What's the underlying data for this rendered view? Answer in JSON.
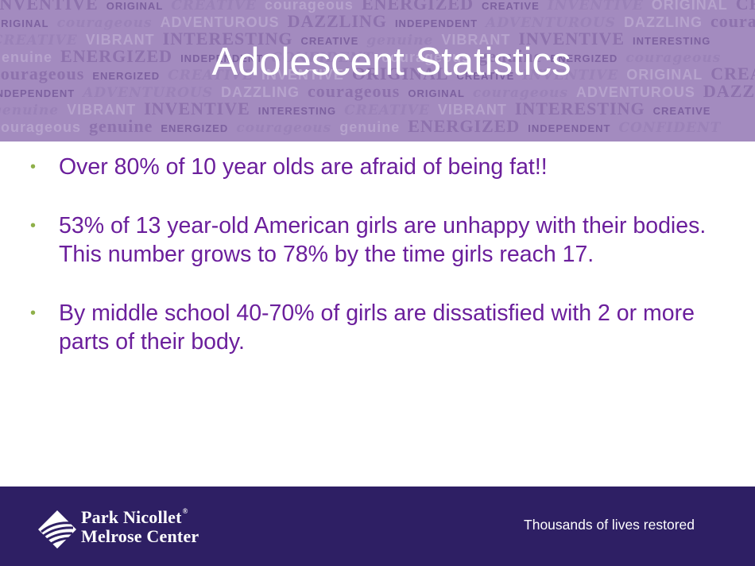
{
  "slide": {
    "title": "Adolescent Statistics",
    "bullets": [
      "Over 80% of 10 year olds are afraid of being fat!!",
      "53% of 13 year-old American girls are unhappy with their bodies. This number grows to 78% by the time girls reach 17.",
      "By middle school 40-70% of girls are dissatisfied with 2 or more parts of their body."
    ],
    "bullet_glyph": "•"
  },
  "header": {
    "background_words": [
      [
        "INVENTIVE",
        "ORIGINAL",
        "CREATIVE",
        "courageous",
        "ENERGIZED",
        "CREATIVE",
        "INVENTIVE",
        "ORIGINAL",
        "CREATIVE"
      ],
      [
        "ADVENTUROUS",
        "DAZZLING",
        "courageous",
        "ORIGINAL",
        "courageous",
        "ADVENTUROUS",
        "DAZZLING",
        "INDEPENDENT"
      ],
      [
        "INTERESTING",
        "CREATIVE",
        "genuine",
        "VIBRANT",
        "INVENTIVE",
        "INTERESTING",
        "CREATIVE",
        "VIBRANT"
      ],
      [
        "courageous",
        "genuine",
        "ENERGIZED",
        "INDEPENDENT",
        "CONFIDENT",
        "courageous",
        "genuine",
        "ENERGIZED"
      ]
    ]
  },
  "footer": {
    "logo_line1": "Park Nicollet",
    "logo_reg": "®",
    "logo_line2": "Melrose Center",
    "tagline": "Thousands of lives restored"
  },
  "colors": {
    "header_bg": "#a38bbf",
    "title_text": "#ffffff",
    "bullet_text": "#6b1f9c",
    "bullet_marker": "#8fb04a",
    "footer_bg": "#2e1f64"
  },
  "icons": {
    "logo_mark": "park-nicollet-leaf-mark"
  }
}
